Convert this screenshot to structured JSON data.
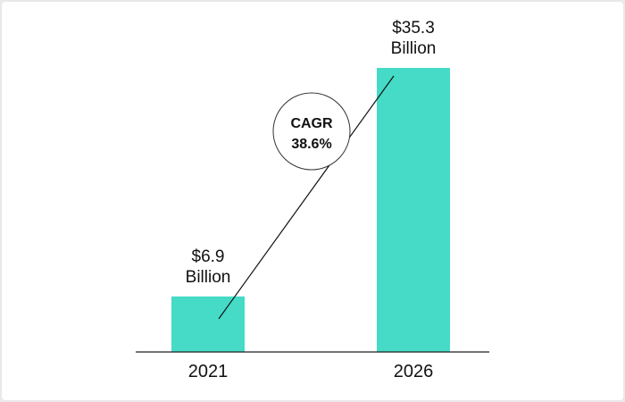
{
  "chart_data": {
    "type": "bar",
    "categories": [
      "2021",
      "2026"
    ],
    "values": [
      6.9,
      35.3
    ],
    "value_labels": [
      [
        "$6.9",
        "Billion"
      ],
      [
        "$35.3",
        "Billion"
      ]
    ],
    "ylim": [
      0,
      35.3
    ],
    "grid": false,
    "bar_color": "#45dbc7",
    "annotation": {
      "title": "CAGR",
      "value": "38.6%"
    }
  }
}
